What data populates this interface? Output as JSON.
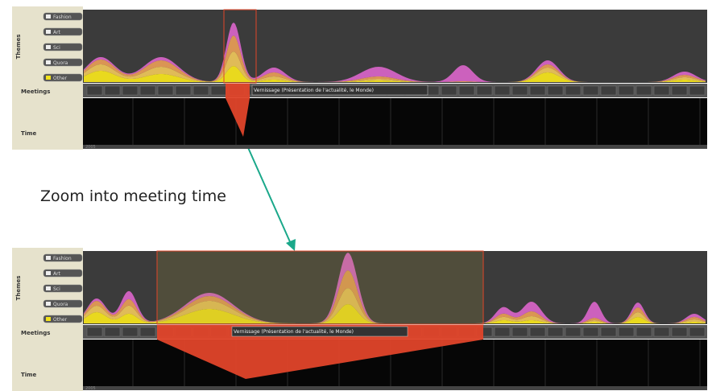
{
  "top_panel": {
    "legend": [
      "Fashion",
      "Art",
      "Sci",
      "Quora",
      "Other"
    ],
    "labels": {
      "themes": "Themes",
      "meetings": "Meetings",
      "time": "Time"
    },
    "meeting_label": "Vernissage (Présentation de l'actualité, le Monde)",
    "year": "2005"
  },
  "caption": "Zoom into meeting time",
  "bottom_panel": {
    "legend": [
      "Fashion",
      "Art",
      "Sci",
      "Quora",
      "Other"
    ],
    "labels": {
      "themes": "Themes",
      "meetings": "Meetings",
      "time": "Time"
    },
    "meeting_label": "Vernissage (Présentation de l'actualité, le Monde)",
    "year": "2005"
  }
}
